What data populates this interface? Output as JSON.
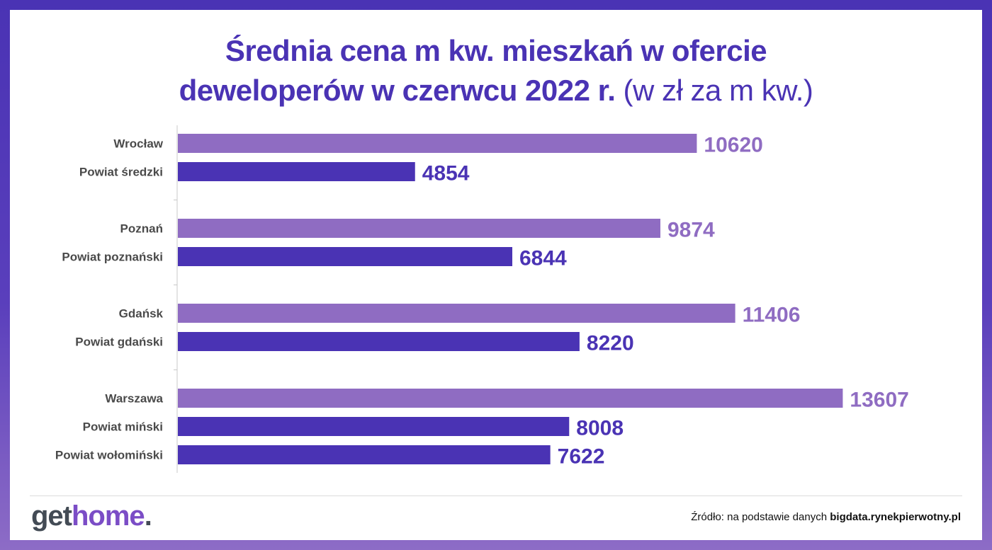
{
  "title": {
    "line1": "Średnia cena m kw. mieszkań w ofercie",
    "line2_bold": "deweloperów w czerwcu 2022 r.",
    "line2_light": "(w zł za m kw.)"
  },
  "chart_data": {
    "type": "bar",
    "orientation": "horizontal",
    "title": "Średnia cena m kw. mieszkań w ofercie deweloperów w czerwcu 2022 r. (w zł za m kw.)",
    "xlabel": "",
    "ylabel": "",
    "xlim": [
      0,
      14500
    ],
    "grid": false,
    "categories": [
      "Wrocław",
      "Powiat średzki",
      "Poznań",
      "Powiat poznański",
      "Gdańsk",
      "Powiat gdański",
      "Warszawa",
      "Powiat miński",
      "Powiat wołomiński"
    ],
    "values": [
      10620,
      4854,
      9874,
      6844,
      11406,
      8220,
      13607,
      8008,
      7622
    ],
    "kinds": [
      "city",
      "county",
      "city",
      "county",
      "city",
      "county",
      "city",
      "county",
      "county"
    ],
    "groups": [
      2,
      2,
      2,
      3
    ],
    "colors": {
      "city": "#8f6cc2",
      "county": "#4a33b4"
    },
    "label_colors": {
      "city": "#8f6cc2",
      "county": "#4a33b4"
    }
  },
  "footer": {
    "logo_part1": "get",
    "logo_part2": "home",
    "logo_dot": ".",
    "source_prefix": "Źródło: na podstawie danych",
    "source_bold": "bigdata.rynekpierwotny.pl"
  }
}
